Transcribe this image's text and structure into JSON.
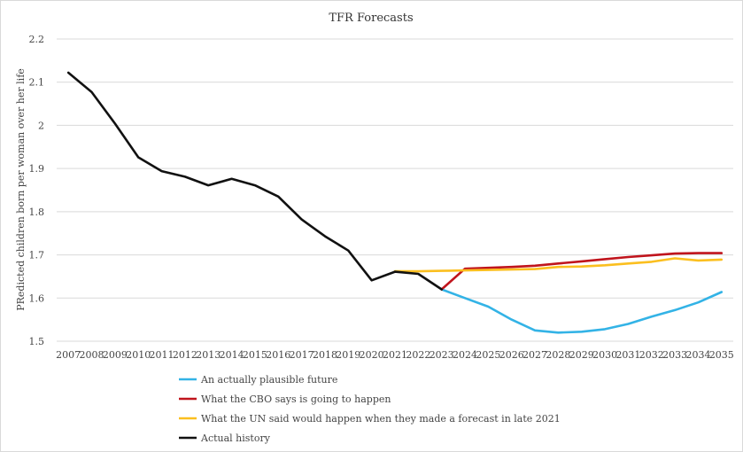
{
  "chart_data": {
    "type": "line",
    "title": "TFR Forecasts",
    "xlabel": "",
    "ylabel": "PRedicted children born per woman over her life",
    "x": [
      "2007",
      "2008",
      "2009",
      "2010",
      "2011",
      "2012",
      "2013",
      "2014",
      "2015",
      "2016",
      "2017",
      "2018",
      "2019",
      "2020",
      "2021",
      "2022",
      "2023",
      "2024",
      "2025",
      "2026",
      "2027",
      "2028",
      "2029",
      "2030",
      "2031",
      "2032",
      "2033",
      "2034",
      "2035"
    ],
    "ylim": [
      1.5,
      2.2
    ],
    "yticks": [
      "2.2",
      "2.1",
      "2",
      "1.9",
      "1.8",
      "1.7",
      "1.6",
      "1.5"
    ],
    "grid": true,
    "legend_position": "bottom",
    "series": [
      {
        "name": "An actually plausible future",
        "color": "#33b3e6",
        "values": [
          null,
          null,
          null,
          null,
          null,
          null,
          null,
          null,
          null,
          null,
          null,
          null,
          null,
          null,
          null,
          null,
          1.62,
          1.6,
          1.58,
          1.55,
          1.525,
          1.52,
          1.522,
          1.528,
          1.54,
          1.557,
          1.572,
          1.59,
          1.614
        ]
      },
      {
        "name": "What the CBO says is going to happen",
        "color": "#c0141c",
        "values": [
          null,
          null,
          null,
          null,
          null,
          null,
          null,
          null,
          null,
          null,
          null,
          null,
          null,
          null,
          null,
          null,
          1.62,
          1.668,
          1.67,
          1.672,
          1.675,
          1.68,
          1.685,
          1.69,
          1.695,
          1.699,
          1.703,
          1.704,
          1.704
        ]
      },
      {
        "name": "What the UN said would happen when they made a forecast in late 2021",
        "color": "#fbbf1f",
        "values": [
          null,
          null,
          null,
          null,
          null,
          null,
          null,
          null,
          null,
          null,
          null,
          null,
          null,
          null,
          1.662,
          1.662,
          1.663,
          1.664,
          1.665,
          1.666,
          1.667,
          1.672,
          1.673,
          1.676,
          1.68,
          1.684,
          1.692,
          1.687,
          1.689
        ]
      },
      {
        "name": "Actual history",
        "color": "#111111",
        "values": [
          2.122,
          2.077,
          2.004,
          1.926,
          1.894,
          1.881,
          1.861,
          1.876,
          1.861,
          1.835,
          1.782,
          1.743,
          1.71,
          1.641,
          1.661,
          1.656,
          1.62,
          null,
          null,
          null,
          null,
          null,
          null,
          null,
          null,
          null,
          null,
          null,
          null
        ]
      }
    ]
  }
}
